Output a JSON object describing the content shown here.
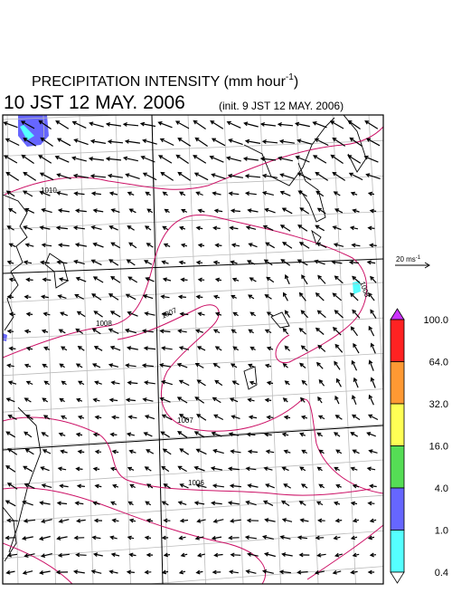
{
  "title": {
    "line1": "PRECIPITATION INTENSITY (mm hour",
    "line1_sup": "-1",
    "line1_end": ")",
    "valid": "10 JST 12 MAY. 2006",
    "init": "(init. 9 JST 12 MAY. 2006)"
  },
  "wind_legend": {
    "label": "20 ms",
    "sup": "-1"
  },
  "colorbar": {
    "levels": [
      {
        "value": 100,
        "label": "100.0"
      },
      {
        "value": 64,
        "label": "64.0"
      },
      {
        "value": 32,
        "label": "32.0"
      },
      {
        "value": 16,
        "label": "16.0"
      },
      {
        "value": 4,
        "label": "4.0"
      },
      {
        "value": 1,
        "label": "1.0"
      },
      {
        "value": 0.4,
        "label": "0.4"
      }
    ],
    "colors": [
      "#cc33ff",
      "#ff2222",
      "#ff9933",
      "#ffff55",
      "#55dd55",
      "#6666ff",
      "#55ffff",
      "#ffffff"
    ]
  },
  "contour_labels": [
    "1010",
    "1008",
    "1007",
    "1007",
    "1006",
    "1008"
  ]
}
